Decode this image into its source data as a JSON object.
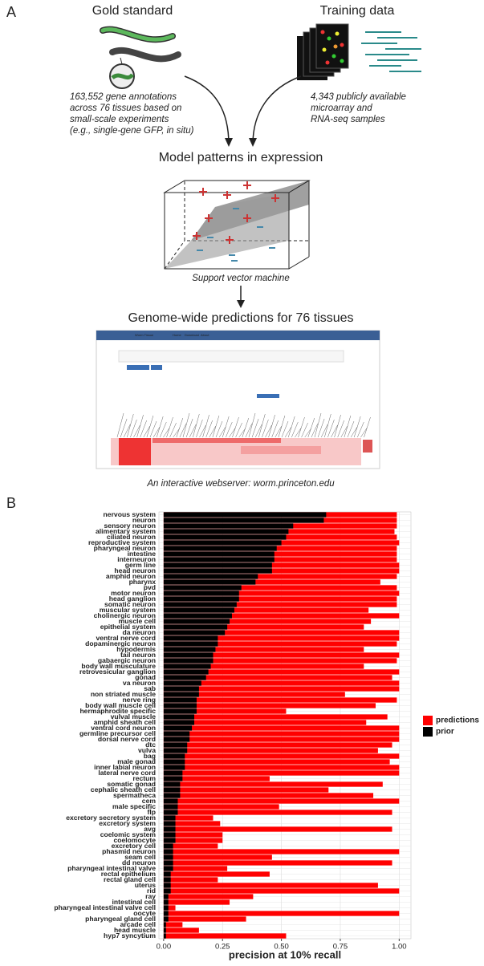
{
  "panel_a": {
    "label": "A",
    "gold_title": "Gold standard",
    "training_title": "Training data",
    "gold_text": [
      "163,552 gene annotations",
      "across 76 tissues based on",
      "small-scale experiments",
      "(e.g., single-gene GFP, in situ)"
    ],
    "training_text": [
      "4,343 publicly available",
      "microarray and",
      "RNA-seq samples"
    ],
    "model_title": "Model patterns in expression",
    "svm": "Support vector machine",
    "predictions_title": "Genome-wide predictions for 76 tissues",
    "webserver_nav": [
      "Worm Tissue",
      "Home",
      "Download",
      "About"
    ],
    "caption": "An interactive webserver: worm.princeton.edu"
  },
  "chart_data": {
    "type": "bar",
    "orientation": "horizontal",
    "panel_label": "B",
    "categories": [
      "nervous system",
      "neuron",
      "sensory neuron",
      "alimentary system",
      "ciliated neuron",
      "reproductive system",
      "pharyngeal neuron",
      "intestine",
      "interneuron",
      "germ line",
      "head neuron",
      "amphid neuron",
      "pharynx",
      "pvd",
      "motor neuron",
      "head ganglion",
      "somatic neuron",
      "muscular system",
      "cholinergic neuron",
      "muscle cell",
      "epithelial system",
      "da neuron",
      "ventral nerve cord",
      "dopaminergic neuron",
      "hypodermis",
      "tail neuron",
      "gabaergic neuron",
      "body wall musculature",
      "retrovesicular ganglion",
      "gonad",
      "va neuron",
      "sab",
      "non striated muscle",
      "nerve ring",
      "body wall muscle cell",
      "hermaphrodite specific",
      "vulval muscle",
      "amphid sheath cell",
      "ventral cord neuron",
      "germline precursor cell",
      "dorsal nerve cord",
      "dtc",
      "vulva",
      "bag",
      "male gonad",
      "inner labial neuron",
      "lateral nerve cord",
      "rectum",
      "somatic gonad",
      "cephalic sheath cell",
      "spermatheca",
      "cem",
      "male specific",
      "flp",
      "excretory secretory system",
      "excretory system",
      "avg",
      "coelomic system",
      "coelomocyte",
      "excretory cell",
      "phasmid neuron",
      "seam cell",
      "dd neuron",
      "pharyngeal intestinal valve",
      "rectal epithelium",
      "rectal gland cell",
      "uterus",
      "rid",
      "ray",
      "intestinal cell",
      "pharyngeal intestinal valve cell",
      "oocyte",
      "pharyngeal gland cell",
      "arcade cell",
      "head muscle",
      "hyp7 syncytium"
    ],
    "series": [
      {
        "name": "predictions",
        "color": "#ff0000",
        "values": [
          0.99,
          0.99,
          0.99,
          0.98,
          0.99,
          1.0,
          0.99,
          0.99,
          0.99,
          1.0,
          1.0,
          0.99,
          0.92,
          0.99,
          1.0,
          0.99,
          0.99,
          0.87,
          1.0,
          0.88,
          0.85,
          1.0,
          1.0,
          0.99,
          0.85,
          1.0,
          0.99,
          0.85,
          1.0,
          0.97,
          1.0,
          1.0,
          0.77,
          0.99,
          0.9,
          0.52,
          0.95,
          0.86,
          1.0,
          1.0,
          1.0,
          0.97,
          0.91,
          1.0,
          0.96,
          1.0,
          1.0,
          0.45,
          0.93,
          0.7,
          0.89,
          1.0,
          0.49,
          0.97,
          0.21,
          0.24,
          0.97,
          0.25,
          0.25,
          0.23,
          1.0,
          0.46,
          0.97,
          0.27,
          0.45,
          0.23,
          0.91,
          1.0,
          0.38,
          0.28,
          0.05,
          1.0,
          0.35,
          0.08,
          0.15,
          0.52
        ]
      },
      {
        "name": "prior",
        "color": "#000000",
        "values": [
          0.69,
          0.68,
          0.55,
          0.53,
          0.52,
          0.5,
          0.48,
          0.47,
          0.47,
          0.46,
          0.46,
          0.4,
          0.39,
          0.33,
          0.32,
          0.32,
          0.31,
          0.3,
          0.29,
          0.28,
          0.27,
          0.26,
          0.23,
          0.23,
          0.22,
          0.21,
          0.21,
          0.2,
          0.19,
          0.18,
          0.16,
          0.15,
          0.15,
          0.14,
          0.14,
          0.14,
          0.13,
          0.13,
          0.12,
          0.11,
          0.11,
          0.1,
          0.1,
          0.09,
          0.09,
          0.09,
          0.08,
          0.08,
          0.07,
          0.07,
          0.07,
          0.06,
          0.06,
          0.06,
          0.05,
          0.05,
          0.05,
          0.05,
          0.05,
          0.04,
          0.04,
          0.04,
          0.04,
          0.04,
          0.03,
          0.03,
          0.03,
          0.03,
          0.02,
          0.02,
          0.02,
          0.02,
          0.02,
          0.01,
          0.01,
          0.01
        ]
      }
    ],
    "x_label": "precision at 10% recall",
    "xlim": [
      -0.02,
      1.05
    ],
    "xticks": [
      {
        "value": 0,
        "label": "0.00"
      },
      {
        "value": 0.25,
        "label": "0.25"
      },
      {
        "value": 0.5,
        "label": "0.50"
      },
      {
        "value": 0.75,
        "label": "0.75"
      },
      {
        "value": 1,
        "label": "1.00"
      }
    ],
    "grid": true,
    "legend": "right"
  }
}
